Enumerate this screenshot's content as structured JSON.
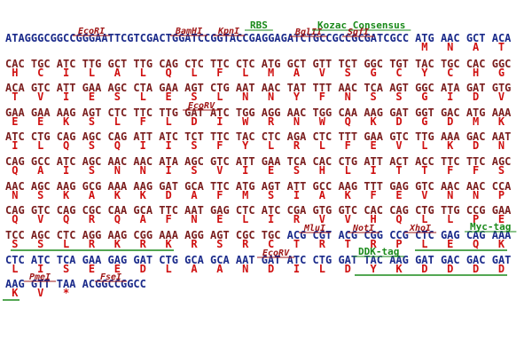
{
  "rows": [
    {
      "prefix": "ATAGGGCGGCCGGGAATTCGTCGACTGGATCCGGTACCGAGGAGATCTGCCGCCGCGATCGCC",
      "codons": [
        "ATG",
        "AAC",
        "GCT",
        "ACA"
      ],
      "amino_acids": [
        "M",
        "N",
        "A",
        "T"
      ],
      "color": "#1a2a8a",
      "annotations": [
        {
          "text": "EcoRI",
          "color": "#a01818"
        },
        {
          "text": "BamHI",
          "color": "#a01818"
        },
        {
          "text": "KpnI",
          "color": "#a01818"
        },
        {
          "text": "RBS",
          "color": "#1a8a1a"
        },
        {
          "text": "BglII",
          "color": "#a01818"
        },
        {
          "text": "Kozac Consensus",
          "color": "#1a8a1a"
        },
        {
          "text": "SgfI",
          "color": "#a01818"
        }
      ]
    },
    {
      "codons": [
        "CAC",
        "TGC",
        "ATC",
        "TTG",
        "GCT",
        "TTG",
        "CAG",
        "CTC",
        "TTC",
        "CTC",
        "ATG",
        "GCT",
        "GTT",
        "TCT",
        "GGC",
        "TGT",
        "TAC",
        "TGC",
        "CAC",
        "GGC"
      ],
      "amino_acids": [
        "H",
        "C",
        "I",
        "L",
        "A",
        "L",
        "Q",
        "L",
        "F",
        "L",
        "M",
        "A",
        "V",
        "S",
        "G",
        "C",
        "Y",
        "C",
        "H",
        "G"
      ],
      "color": "#7a1e1e",
      "annotations": []
    },
    {
      "codons": [
        "ACA",
        "GTC",
        "ATT",
        "GAA",
        "AGC",
        "CTA",
        "GAA",
        "AGT",
        "CTG",
        "AAT",
        "AAC",
        "TAT",
        "TTT",
        "AAC",
        "TCA",
        "AGT",
        "GGC",
        "ATA",
        "GAT",
        "GTG"
      ],
      "amino_acids": [
        "T",
        "V",
        "I",
        "E",
        "S",
        "L",
        "E",
        "S",
        "L",
        "N",
        "N",
        "Y",
        "F",
        "N",
        "S",
        "S",
        "G",
        "I",
        "D",
        "V"
      ],
      "color": "#7a1e1e",
      "annotations": []
    },
    {
      "codons": [
        "GAA",
        "GAA",
        "AAG",
        "AGT",
        "CTC",
        "TTC",
        "TTG",
        "GAT",
        "ATC",
        "TGG",
        "AGG",
        "AAC",
        "TGG",
        "CAA",
        "AAG",
        "GAT",
        "GGT",
        "GAC",
        "ATG",
        "AAA"
      ],
      "amino_acids": [
        "E",
        "E",
        "K",
        "S",
        "L",
        "F",
        "L",
        "D",
        "I",
        "W",
        "R",
        "N",
        "W",
        "Q",
        "K",
        "D",
        "G",
        "D",
        "M",
        "K"
      ],
      "color": "#7a1e1e",
      "annotations": [
        {
          "text": "EcoRV",
          "color": "#a01818"
        }
      ]
    },
    {
      "codons": [
        "ATC",
        "CTG",
        "CAG",
        "AGC",
        "CAG",
        "ATT",
        "ATC",
        "TCT",
        "TTC",
        "TAC",
        "CTC",
        "AGA",
        "CTC",
        "TTT",
        "GAA",
        "GTC",
        "TTG",
        "AAA",
        "GAC",
        "AAT"
      ],
      "amino_acids": [
        "I",
        "L",
        "Q",
        "S",
        "Q",
        "I",
        "I",
        "S",
        "F",
        "Y",
        "L",
        "R",
        "L",
        "F",
        "E",
        "V",
        "L",
        "K",
        "D",
        "N"
      ],
      "color": "#7a1e1e",
      "annotations": []
    },
    {
      "codons": [
        "CAG",
        "GCC",
        "ATC",
        "AGC",
        "AAC",
        "AAC",
        "ATA",
        "AGC",
        "GTC",
        "ATT",
        "GAA",
        "TCA",
        "CAC",
        "CTG",
        "ATT",
        "ACT",
        "ACC",
        "TTC",
        "TTC",
        "AGC"
      ],
      "amino_acids": [
        "Q",
        "A",
        "I",
        "S",
        "N",
        "N",
        "I",
        "S",
        "V",
        "I",
        "E",
        "S",
        "H",
        "L",
        "I",
        "T",
        "T",
        "F",
        "F",
        "S"
      ],
      "color": "#7a1e1e",
      "annotations": []
    },
    {
      "codons": [
        "AAC",
        "AGC",
        "AAG",
        "GCG",
        "AAA",
        "AAG",
        "GAT",
        "GCA",
        "TTC",
        "ATG",
        "AGT",
        "ATT",
        "GCC",
        "AAG",
        "TTT",
        "GAG",
        "GTC",
        "AAC",
        "AAC",
        "CCA"
      ],
      "amino_acids": [
        "N",
        "S",
        "K",
        "A",
        "K",
        "K",
        "D",
        "A",
        "F",
        "M",
        "S",
        "I",
        "A",
        "K",
        "F",
        "E",
        "V",
        "N",
        "N",
        "P"
      ],
      "color": "#7a1e1e",
      "annotations": []
    },
    {
      "codons": [
        "CAG",
        "GTC",
        "CAG",
        "CGC",
        "CAA",
        "GCA",
        "TTC",
        "AAT",
        "GAG",
        "CTC",
        "ATC",
        "CGA",
        "GTG",
        "GTC",
        "CAC",
        "CAG",
        "CTG",
        "TTG",
        "CCG",
        "GAA"
      ],
      "amino_acids": [
        "Q",
        "V",
        "Q",
        "R",
        "Q",
        "A",
        "F",
        "N",
        "E",
        "L",
        "I",
        "R",
        "V",
        "V",
        "H",
        "Q",
        "L",
        "L",
        "P",
        "E"
      ],
      "color": "#7a1e1e",
      "annotations": []
    },
    {
      "codons": [
        "TCC",
        "AGC",
        "CTC",
        "AGG",
        "AAG",
        "CGG",
        "AAA",
        "AGG",
        "AGT",
        "CGC",
        "TGC",
        "ACG",
        "CGT",
        "ACG",
        "CGG",
        "CCG",
        "CTC",
        "GAG",
        "CAG",
        "AAA"
      ],
      "amino_acids": [
        "S",
        "S",
        "L",
        "R",
        "K",
        "R",
        "K",
        "R",
        "S",
        "R",
        "C",
        "T",
        "R",
        "T",
        "R",
        "P",
        "L",
        "E",
        "Q",
        "K"
      ],
      "color": [
        "#7a1e1e",
        "#7a1e1e",
        "#7a1e1e",
        "#7a1e1e",
        "#7a1e1e",
        "#7a1e1e",
        "#7a1e1e",
        "#7a1e1e",
        "#7a1e1e",
        "#7a1e1e",
        "#7a1e1e",
        "#1a2a8a",
        "#1a2a8a",
        "#1a2a8a",
        "#1a2a8a",
        "#1a2a8a",
        "#1a2a8a",
        "#1a2a8a",
        "#1a2a8a",
        "#1a2a8a"
      ],
      "annotations": [
        {
          "text": "MluI",
          "color": "#a01818"
        },
        {
          "text": "NotI",
          "color": "#a01818"
        },
        {
          "text": "XhoI",
          "color": "#a01818"
        },
        {
          "text": "Myc-tag",
          "color": "#1a8a1a"
        }
      ]
    },
    {
      "codons": [
        "CTC",
        "ATC",
        "TCA",
        "GAA",
        "GAG",
        "GAT",
        "CTG",
        "GCA",
        "GCA",
        "AAT",
        "GAT",
        "ATC",
        "CTG",
        "GAT",
        "TAC",
        "AAG",
        "GAT",
        "GAC",
        "GAC",
        "GAT"
      ],
      "amino_acids": [
        "L",
        "I",
        "S",
        "E",
        "E",
        "D",
        "L",
        "A",
        "A",
        "N",
        "D",
        "I",
        "L",
        "D",
        "Y",
        "K",
        "D",
        "D",
        "D",
        "D"
      ],
      "color": "#1a2a8a",
      "annotations": [
        {
          "text": "EcoRV",
          "color": "#a01818"
        },
        {
          "text": "DDK-tag",
          "color": "#1a8a1a"
        }
      ]
    },
    {
      "codons": [
        "AAG",
        "GTT",
        "TAA"
      ],
      "suffix": "ACGGCCGGCC",
      "amino_acids": [
        "K",
        "V",
        "*"
      ],
      "color": "#1a2a8a",
      "annotations": [
        {
          "text": "PmeI",
          "color": "#a01818"
        },
        {
          "text": "FseI",
          "color": "#a01818"
        }
      ]
    }
  ]
}
